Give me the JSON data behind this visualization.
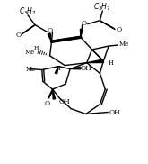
{
  "bg_color": "#ffffff",
  "line_color": "#000000",
  "lw": 1.0,
  "figsize": [
    1.65,
    1.82
  ],
  "dpi": 100,
  "xlim": [
    0,
    165
  ],
  "ylim": [
    0,
    182
  ]
}
